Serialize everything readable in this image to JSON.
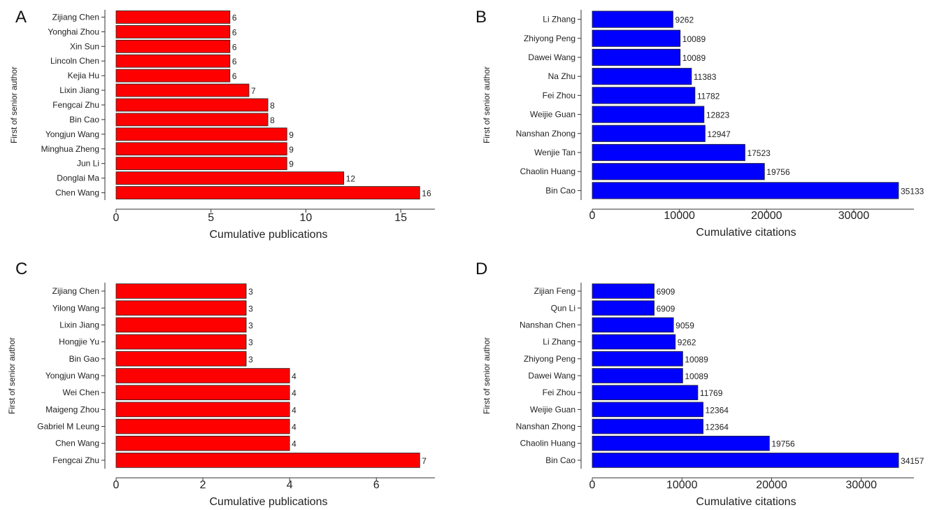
{
  "chart_data": [
    {
      "panel": "A",
      "type": "bar",
      "orientation": "horizontal",
      "color": "#ff0000",
      "categories": [
        "Zijiang Chen",
        "Yonghai Zhou",
        "Xin Sun",
        "Lincoln Chen",
        "Kejia Hu",
        "Lixin Jiang",
        "Fengcai Zhu",
        "Bin Cao",
        "Yongjun Wang",
        "Minghua Zheng",
        "Jun Li",
        "Donglai Ma",
        "Chen Wang"
      ],
      "values": [
        6,
        6,
        6,
        6,
        6,
        7,
        8,
        8,
        9,
        9,
        9,
        12,
        16
      ],
      "value_labels": [
        "6",
        "6",
        "6",
        "6",
        "6",
        "7",
        "8",
        "8",
        "9",
        "9",
        "9",
        "12",
        "16"
      ],
      "xlabel": "Cumulative publications",
      "ylabel": "First of senior author",
      "xlim": [
        0,
        16.8
      ],
      "xticks": [
        0,
        5,
        10,
        15
      ],
      "xtick_labels": [
        "0",
        "5",
        "10",
        "15"
      ],
      "grid": false
    },
    {
      "panel": "B",
      "type": "bar",
      "orientation": "horizontal",
      "color": "#0000ff",
      "categories": [
        "Li Zhang",
        "Zhiyong Peng",
        "Dawei Wang",
        "Na Zhu",
        "Fei Zhou",
        "Weijie Guan",
        "Nanshan Zhong",
        "Wenjie Tan",
        "Chaolin Huang",
        "Bin Cao"
      ],
      "values": [
        9262,
        10089,
        10089,
        11383,
        11782,
        12823,
        12947,
        17523,
        19756,
        35133
      ],
      "value_labels": [
        "9262",
        "10089",
        "10089",
        "11383",
        "11782",
        "12823",
        "12947",
        "17523",
        "19756",
        "35133"
      ],
      "xlabel": "Cumulative citations",
      "ylabel": "First of senior author",
      "xlim": [
        0,
        36900
      ],
      "xticks": [
        0,
        10000,
        20000,
        30000
      ],
      "xtick_labels": [
        "0",
        "10000",
        "20000",
        "30000"
      ],
      "grid": false
    },
    {
      "panel": "C",
      "type": "bar",
      "orientation": "horizontal",
      "color": "#ff0000",
      "categories": [
        "Zijiang Chen",
        "Yilong Wang",
        "Lixin Jiang",
        "Hongjie Yu",
        "Bin Gao",
        "Yongjun Wang",
        "Wei Chen",
        "Maigeng Zhou",
        "Gabriel M Leung",
        "Chen Wang",
        "Fengcai Zhu"
      ],
      "values": [
        3,
        3,
        3,
        3,
        3,
        4,
        4,
        4,
        4,
        4,
        7
      ],
      "value_labels": [
        "3",
        "3",
        "3",
        "3",
        "3",
        "4",
        "4",
        "4",
        "4",
        "4",
        "7"
      ],
      "xlabel": "Cumulative publications",
      "ylabel": "First of senior author",
      "xlim": [
        0,
        7.35
      ],
      "xticks": [
        0,
        2,
        4,
        6
      ],
      "xtick_labels": [
        "0",
        "2",
        "4",
        "6"
      ],
      "grid": false
    },
    {
      "panel": "D",
      "type": "bar",
      "orientation": "horizontal",
      "color": "#0000ff",
      "categories": [
        "Zijian Feng",
        "Qun Li",
        "Nanshan Chen",
        "Li Zhang",
        "Zhiyong Peng",
        "Dawei Wang",
        "Fei Zhou",
        "Weijie Guan",
        "Nanshan Zhong",
        "Chaolin Huang",
        "Bin Cao"
      ],
      "values": [
        6909,
        6909,
        9059,
        9262,
        10089,
        10089,
        11769,
        12364,
        12364,
        19756,
        34157
      ],
      "value_labels": [
        "6909",
        "6909",
        "9059",
        "9262",
        "10089",
        "10089",
        "11769",
        "12364",
        "12364",
        "19756",
        "34157"
      ],
      "xlabel": "Cumulative citations",
      "ylabel": "First of senior author",
      "xlim": [
        0,
        35870
      ],
      "xticks": [
        0,
        10000,
        20000,
        30000
      ],
      "xtick_labels": [
        "0",
        "10000",
        "20000",
        "30000"
      ],
      "grid": false
    }
  ]
}
